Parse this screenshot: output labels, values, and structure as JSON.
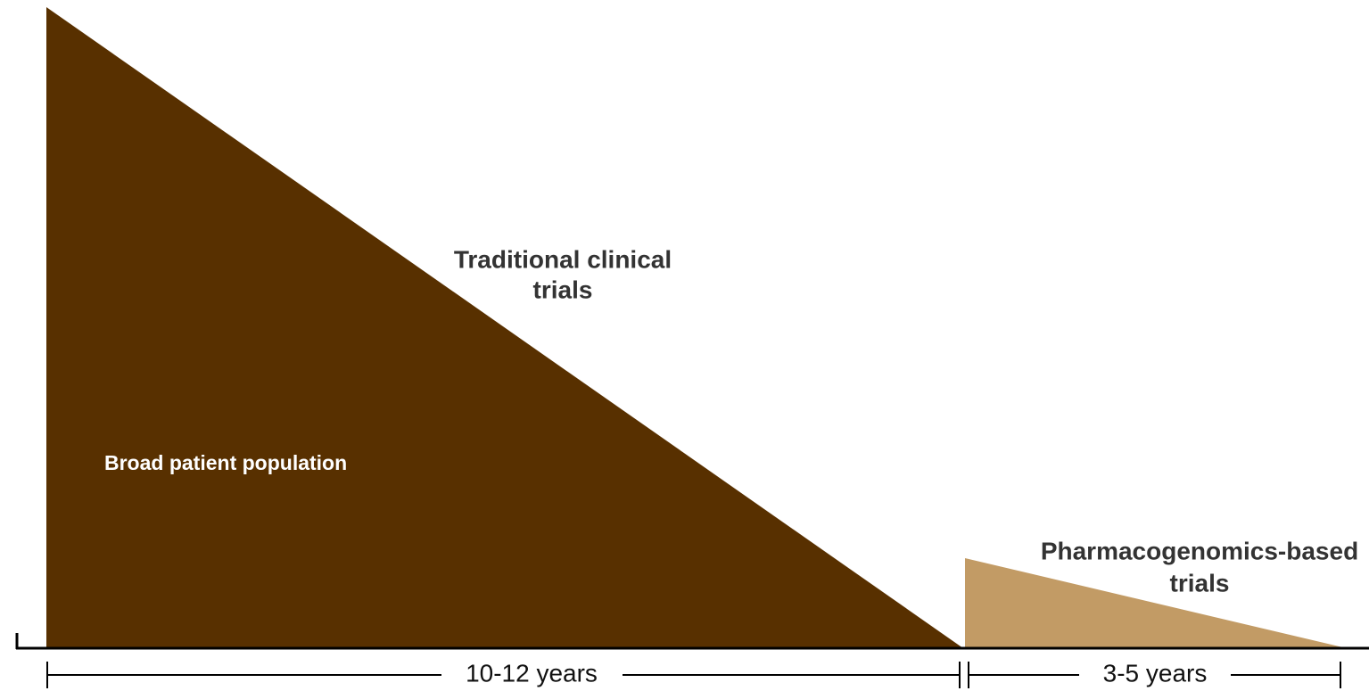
{
  "traditional": {
    "label_lines": [
      "Traditional clinical",
      "trials"
    ],
    "inner_label": "Broad patient population",
    "duration": "10-12 years"
  },
  "pharmacogenomics": {
    "label_lines": [
      "Pharmacogenomics-based",
      "trials"
    ],
    "duration": "3-5 years"
  }
}
